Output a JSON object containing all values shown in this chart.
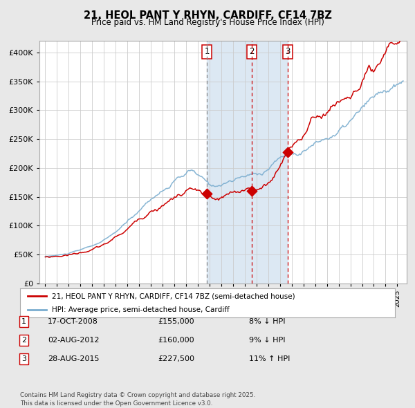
{
  "title": "21, HEOL PANT Y RHYN, CARDIFF, CF14 7BZ",
  "subtitle": "Price paid vs. HM Land Registry's House Price Index (HPI)",
  "legend_line1": "21, HEOL PANT Y RHYN, CARDIFF, CF14 7BZ (semi-detached house)",
  "legend_line2": "HPI: Average price, semi-detached house, Cardiff",
  "footer": "Contains HM Land Registry data © Crown copyright and database right 2025.\nThis data is licensed under the Open Government Licence v3.0.",
  "transactions": [
    {
      "num": 1,
      "date": "17-OCT-2008",
      "price": 155000,
      "hpi_rel": "8% ↓ HPI",
      "year": 2008.79
    },
    {
      "num": 2,
      "date": "02-AUG-2012",
      "price": 160000,
      "hpi_rel": "9% ↓ HPI",
      "year": 2012.58
    },
    {
      "num": 3,
      "date": "28-AUG-2015",
      "price": 227500,
      "hpi_rel": "11% ↑ HPI",
      "year": 2015.65
    }
  ],
  "red_color": "#cc0000",
  "blue_color": "#7aadcf",
  "shade_color": "#dce8f3",
  "page_bg": "#e8e8e8",
  "chart_bg": "#ffffff",
  "grid_color": "#cccccc",
  "ylim": [
    0,
    420000
  ],
  "yticks": [
    0,
    50000,
    100000,
    150000,
    200000,
    250000,
    300000,
    350000,
    400000
  ],
  "xlim_start": 1994.5,
  "xlim_end": 2025.8,
  "hpi_keypoints": [
    [
      1995.0,
      47000
    ],
    [
      1996.5,
      50000
    ],
    [
      1998.0,
      57000
    ],
    [
      2000.0,
      72000
    ],
    [
      2002.0,
      102000
    ],
    [
      2004.0,
      142000
    ],
    [
      2006.0,
      170000
    ],
    [
      2007.5,
      185000
    ],
    [
      2009.2,
      155000
    ],
    [
      2010.5,
      165000
    ],
    [
      2012.0,
      172000
    ],
    [
      2013.5,
      178000
    ],
    [
      2015.0,
      205000
    ],
    [
      2016.5,
      215000
    ],
    [
      2018.0,
      232000
    ],
    [
      2020.0,
      250000
    ],
    [
      2022.0,
      282000
    ],
    [
      2024.0,
      305000
    ],
    [
      2025.5,
      310000
    ]
  ],
  "red_keypoints": [
    [
      1995.0,
      46000
    ],
    [
      1996.5,
      49000
    ],
    [
      1998.0,
      55000
    ],
    [
      2000.0,
      68000
    ],
    [
      2002.0,
      95000
    ],
    [
      2004.0,
      132000
    ],
    [
      2006.0,
      158000
    ],
    [
      2007.5,
      172000
    ],
    [
      2008.79,
      155000
    ],
    [
      2009.5,
      142000
    ],
    [
      2010.5,
      150000
    ],
    [
      2011.5,
      148000
    ],
    [
      2012.58,
      160000
    ],
    [
      2013.5,
      158000
    ],
    [
      2014.5,
      178000
    ],
    [
      2015.65,
      227500
    ],
    [
      2016.5,
      245000
    ],
    [
      2018.0,
      282000
    ],
    [
      2019.5,
      305000
    ],
    [
      2021.0,
      330000
    ],
    [
      2022.5,
      350000
    ],
    [
      2023.5,
      342000
    ],
    [
      2025.3,
      375000
    ]
  ]
}
